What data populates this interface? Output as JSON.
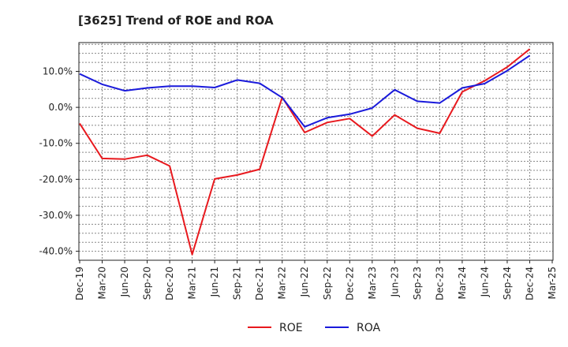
{
  "chart_data": {
    "type": "line",
    "title": "[3625]  Trend of ROE and ROA",
    "xlabel": "",
    "ylabel": "",
    "x": [
      "Dec-19",
      "Mar-20",
      "Jun-20",
      "Sep-20",
      "Dec-20",
      "Mar-21",
      "Jun-21",
      "Sep-21",
      "Dec-21",
      "Mar-22",
      "Jun-22",
      "Sep-22",
      "Dec-22",
      "Mar-23",
      "Jun-23",
      "Sep-23",
      "Dec-23",
      "Mar-24",
      "Jun-24",
      "Sep-24",
      "Dec-24",
      "Mar-25"
    ],
    "series": [
      {
        "name": "ROE",
        "color": "#e8191e",
        "values": [
          -4.5,
          -14.2,
          -14.4,
          -13.3,
          -16.3,
          -40.9,
          -19.9,
          -18.8,
          -17.2,
          2.8,
          -7.0,
          -4.2,
          -3.1,
          -8.0,
          -2.1,
          -5.8,
          -7.2,
          4.3,
          7.4,
          11.2,
          16.2,
          null
        ]
      },
      {
        "name": "ROA",
        "color": "#1a1adb",
        "values": [
          9.3,
          6.4,
          4.6,
          5.4,
          5.9,
          5.9,
          5.5,
          7.6,
          6.7,
          2.7,
          -5.4,
          -2.9,
          -1.9,
          -0.2,
          4.9,
          1.7,
          1.2,
          5.4,
          6.6,
          10.2,
          14.4,
          null
        ]
      }
    ],
    "yticks": [
      "10.0%",
      "0.0%",
      "-10.0%",
      "-20.0%",
      "-30.0%",
      "-40.0%"
    ],
    "ytick_values": [
      10,
      0,
      -10,
      -20,
      -30,
      -40
    ],
    "ylim": [
      -42.5,
      18
    ],
    "grid": true,
    "legend_position": "bottom-center"
  }
}
